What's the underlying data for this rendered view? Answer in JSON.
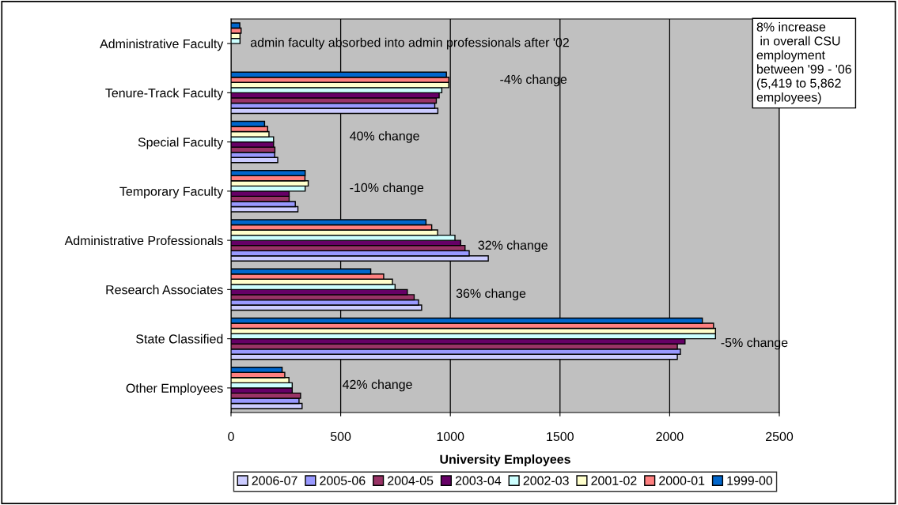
{
  "chart_data": {
    "type": "bar",
    "orientation": "horizontal",
    "xlabel": "University Employees",
    "categories": [
      "Administrative Faculty",
      "Tenure-Track Faculty",
      "Special Faculty",
      "Temporary Faculty",
      "Administrative Professionals",
      "Research Associates",
      "State Classified",
      "Other Employees"
    ],
    "series": [
      {
        "name": "2006-07",
        "color": "#ccccff",
        "values": [
          null,
          943,
          213,
          305,
          1173,
          869,
          2035,
          324
        ]
      },
      {
        "name": "2005-06",
        "color": "#9999ff",
        "values": [
          null,
          929,
          199,
          293,
          1086,
          855,
          2049,
          310
        ]
      },
      {
        "name": "2004-05",
        "color": "#993366",
        "values": [
          null,
          936,
          200,
          265,
          1067,
          835,
          2035,
          317
        ]
      },
      {
        "name": "2003-04",
        "color": "#660066",
        "values": [
          null,
          949,
          194,
          265,
          1047,
          804,
          2070,
          279
        ]
      },
      {
        "name": "2002-03",
        "color": "#ccffff",
        "values": [
          41,
          961,
          194,
          338,
          1021,
          748,
          2209,
          279
        ]
      },
      {
        "name": "2001-02",
        "color": "#ffffcc",
        "values": [
          41,
          993,
          173,
          352,
          942,
          736,
          2209,
          264
        ]
      },
      {
        "name": "2000-01",
        "color": "#ff8080",
        "values": [
          46,
          993,
          167,
          337,
          915,
          696,
          2200,
          245
        ]
      },
      {
        "name": "1999-00",
        "color": "#0066cc",
        "values": [
          40,
          982,
          153,
          338,
          889,
          637,
          2149,
          233
        ]
      }
    ],
    "xlim": [
      0,
      2500
    ],
    "xticks": [
      0,
      500,
      1000,
      1500,
      2000,
      2500
    ],
    "grid": "x",
    "legend": "bottom",
    "annotations": [
      "8% increase\n in overall CSU\nemployment\nbetween '99 - '06\n(5,419 to 5,862\nemployees)",
      "admin faculty absorbed into admin professionals after '02",
      "-4% change",
      "40% change",
      "-10% change",
      "32% change",
      "36% change",
      "-5% change",
      "42% change"
    ]
  }
}
